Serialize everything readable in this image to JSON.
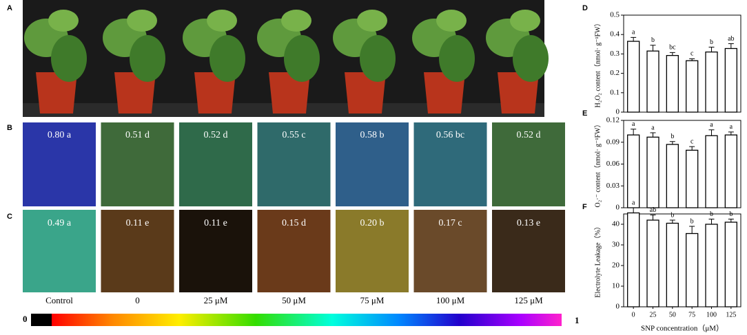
{
  "photos": {
    "panel_labels": [
      "A",
      "B",
      "C"
    ],
    "categories": [
      "Control",
      "0",
      "25 μM",
      "50 μM",
      "75 μM",
      "100 μM",
      "125 μM"
    ],
    "row_b": [
      "0.80 a",
      "0.51 d",
      "0.52 d",
      "0.55 c",
      "0.58 b",
      "0.56 bc",
      "0.52 d"
    ],
    "row_c": [
      "0.49 a",
      "0.11 e",
      "0.11 e",
      "0.15 d",
      "0.20 b",
      "0.17 c",
      "0.13 e"
    ],
    "colorbar": [
      "0",
      "1"
    ]
  },
  "chart_data": [
    {
      "type": "bar",
      "panel_label": "D",
      "y_label": "H₂O₂ content（nmol· g⁻¹FW）",
      "categories": [
        "0",
        "25",
        "50",
        "75",
        "100",
        "125"
      ],
      "values": [
        0.365,
        0.315,
        0.292,
        0.265,
        0.31,
        0.328
      ],
      "errors": [
        0.02,
        0.03,
        0.015,
        0.01,
        0.025,
        0.025
      ],
      "letters": [
        "a",
        "b",
        "bc",
        "c",
        "b",
        "ab"
      ],
      "color": "#ffffff",
      "ylim": [
        0,
        0.5
      ],
      "yticks": [
        0,
        0.1,
        0.2,
        0.3,
        0.4,
        0.5
      ]
    },
    {
      "type": "bar",
      "panel_label": "E",
      "y_label": "O₂·⁻ content（nmol· g⁻¹FW）",
      "categories": [
        "0",
        "25",
        "50",
        "75",
        "100",
        "125"
      ],
      "values": [
        0.1,
        0.097,
        0.087,
        0.079,
        0.099,
        0.1
      ],
      "errors": [
        0.008,
        0.006,
        0.004,
        0.005,
        0.008,
        0.004
      ],
      "letters": [
        "a",
        "a",
        "b",
        "c",
        "a",
        "a"
      ],
      "color": "#ffffff",
      "ylim": [
        0,
        0.12
      ],
      "yticks": [
        0,
        0.03,
        0.06,
        0.09,
        0.12
      ]
    },
    {
      "type": "bar",
      "panel_label": "F",
      "y_label": "Electrolyte Leakage（%）",
      "x_label": "SNP concentration（μM）",
      "categories": [
        "0",
        "25",
        "50",
        "75",
        "100",
        "125"
      ],
      "values": [
        45.5,
        42,
        40.5,
        35.5,
        40,
        41
      ],
      "errors": [
        2.5,
        2.5,
        1.5,
        3.5,
        2.5,
        1.5
      ],
      "letters": [
        "a",
        "ab",
        "b",
        "b",
        "b",
        "b"
      ],
      "color": "#ffffff",
      "ylim": [
        0,
        45
      ],
      "yticks": [
        0,
        10,
        20,
        30,
        40
      ]
    }
  ]
}
